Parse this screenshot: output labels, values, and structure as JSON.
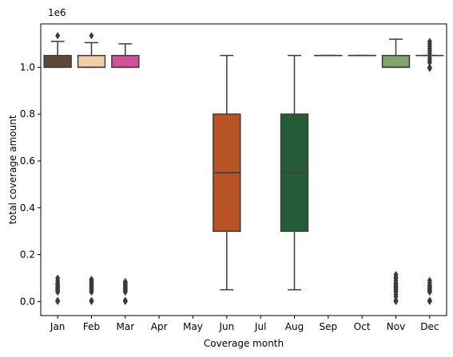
{
  "chart_data": {
    "type": "box",
    "title": "",
    "xlabel": "Coverage month",
    "ylabel": "total coverage amount",
    "y_offset_label": "1e6",
    "y_scale": 1000000,
    "ylim": [
      -60000,
      1185000
    ],
    "yticks": [
      0,
      200000,
      400000,
      600000,
      800000,
      1000000
    ],
    "ytick_labels": [
      "0.0",
      "0.2",
      "0.4",
      "0.6",
      "0.8",
      "1.0"
    ],
    "grid": false,
    "legend": "none",
    "categories": [
      "Jan",
      "Feb",
      "Mar",
      "Apr",
      "May",
      "Jun",
      "Jul",
      "Aug",
      "Sep",
      "Oct",
      "Nov",
      "Dec"
    ],
    "boxes": [
      {
        "category": "Jan",
        "color": "#5e4a33",
        "q1": 1000000,
        "median": 1000000,
        "q3": 1050000,
        "whisker_low": 1000000,
        "whisker_high": 1110000,
        "outliers": [
          1135000,
          100000,
          90000,
          80000,
          75000,
          70000,
          65000,
          60000,
          55000,
          50000,
          45000,
          40000,
          5000,
          0
        ]
      },
      {
        "category": "Feb",
        "color": "#f2cfa7",
        "q1": 1000000,
        "median": 1000000,
        "q3": 1050000,
        "whisker_low": 1000000,
        "whisker_high": 1105000,
        "outliers": [
          1135000,
          95000,
          90000,
          85000,
          80000,
          75000,
          70000,
          65000,
          60000,
          55000,
          50000,
          45000,
          40000,
          5000,
          0
        ]
      },
      {
        "category": "Mar",
        "color": "#d4509c",
        "q1": 1000000,
        "median": 1000000,
        "q3": 1050000,
        "whisker_low": 1000000,
        "whisker_high": 1100000,
        "outliers": [
          85000,
          80000,
          75000,
          70000,
          65000,
          60000,
          55000,
          50000,
          45000,
          40000,
          5000,
          0
        ]
      },
      {
        "category": "Apr",
        "color": null
      },
      {
        "category": "May",
        "color": null
      },
      {
        "category": "Jun",
        "color": "#b95324",
        "q1": 300000,
        "median": 550000,
        "q3": 800000,
        "whisker_low": 50000,
        "whisker_high": 1050000,
        "outliers": []
      },
      {
        "category": "Jul",
        "color": null
      },
      {
        "category": "Aug",
        "color": "#255c38",
        "q1": 300000,
        "median": 550000,
        "q3": 800000,
        "whisker_low": 50000,
        "whisker_high": 1050000,
        "outliers": []
      },
      {
        "category": "Sep",
        "color": "#e6e6e6",
        "q1": 1050000,
        "median": 1050000,
        "q3": 1050000,
        "whisker_low": 1050000,
        "whisker_high": 1050000,
        "outliers": []
      },
      {
        "category": "Oct",
        "color": "#e6e6e6",
        "q1": 1050000,
        "median": 1050000,
        "q3": 1050000,
        "whisker_low": 1050000,
        "whisker_high": 1050000,
        "outliers": []
      },
      {
        "category": "Nov",
        "color": "#80a46a",
        "q1": 1000000,
        "median": 1000000,
        "q3": 1050000,
        "whisker_low": 1000000,
        "whisker_high": 1120000,
        "outliers": [
          115000,
          105000,
          100000,
          90000,
          80000,
          75000,
          70000,
          65000,
          60000,
          55000,
          50000,
          45000,
          40000,
          30000,
          20000,
          5000,
          0
        ]
      },
      {
        "category": "Dec",
        "color": "#f7f7f7",
        "q1": 1050000,
        "median": 1050000,
        "q3": 1050000,
        "whisker_low": 1050000,
        "whisker_high": 1050000,
        "outliers": [
          1110000,
          1100000,
          1090000,
          1080000,
          1070000,
          1060000,
          1040000,
          1030000,
          1020000,
          1000000,
          995000,
          90000,
          80000,
          70000,
          65000,
          60000,
          55000,
          50000,
          45000,
          40000,
          5000,
          0
        ]
      }
    ]
  }
}
